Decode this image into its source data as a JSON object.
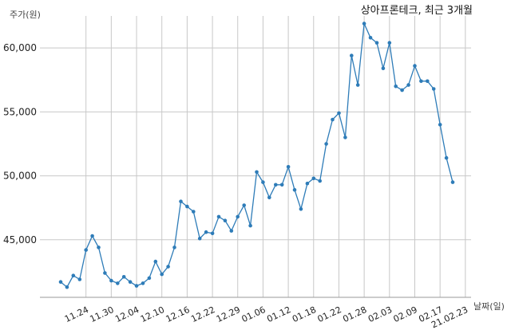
{
  "chart_data": {
    "type": "line",
    "title": "상아프론테크, 최근 3개월",
    "ylabel": "주가(원)",
    "xlabel": "날짜(일)",
    "ylim": [
      40500,
      62500
    ],
    "yticks": [
      45000,
      50000,
      55000,
      60000
    ],
    "ytick_labels": [
      "45,000",
      "50,000",
      "55,000",
      "60,000"
    ],
    "xtick_labels": [
      "11.24",
      "11.30",
      "12.04",
      "12.10",
      "12.16",
      "12.22",
      "12.29",
      "01.06",
      "01.12",
      "01.18",
      "01.22",
      "01.28",
      "02.03",
      "02.09",
      "02.17",
      "21.02.23"
    ],
    "xtick_indices": [
      4,
      8,
      12,
      16,
      20,
      24,
      28,
      32,
      36,
      40,
      44,
      48,
      52,
      56,
      60,
      64
    ],
    "grid": true,
    "series_color": "#2e7cb8",
    "values": [
      41700,
      41300,
      42200,
      41900,
      44200,
      45300,
      44400,
      42400,
      41800,
      41600,
      42100,
      41700,
      41400,
      41600,
      42000,
      43300,
      42300,
      42900,
      44400,
      48000,
      47600,
      47200,
      45100,
      45600,
      45500,
      46800,
      46500,
      45700,
      46800,
      47700,
      46100,
      50300,
      49500,
      48300,
      49300,
      49300,
      50700,
      48900,
      47400,
      49400,
      49800,
      49600,
      52500,
      54400,
      54900,
      53000,
      59400,
      57100,
      61900,
      60800,
      60400,
      58400,
      60400,
      57000,
      56700,
      57100,
      58600,
      57400,
      57400,
      56800,
      54000,
      51400,
      49500
    ]
  }
}
